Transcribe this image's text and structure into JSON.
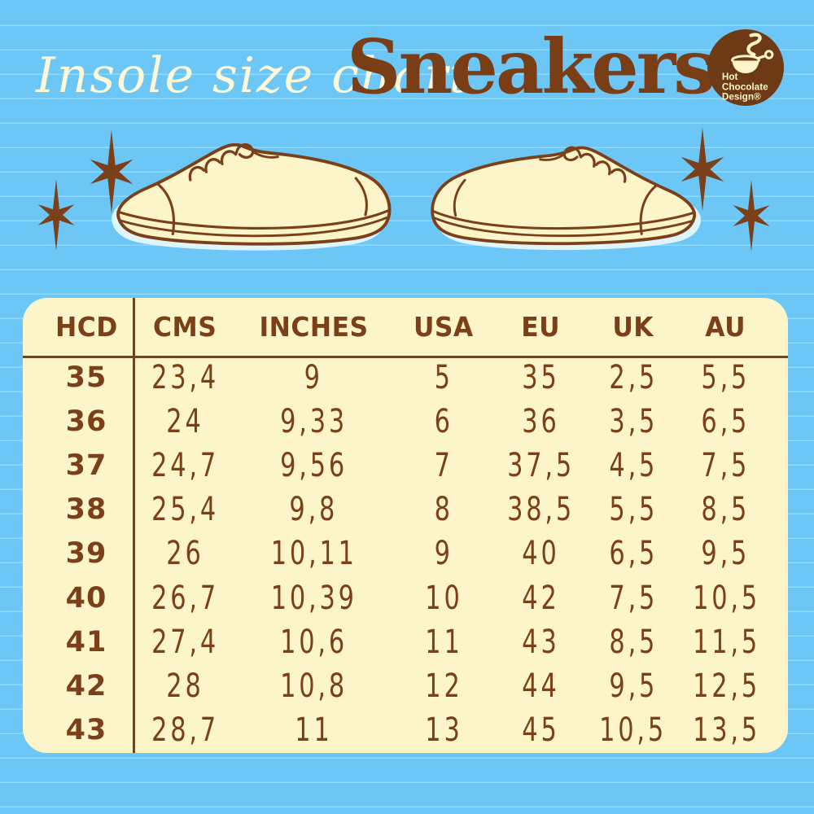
{
  "header": {
    "script_title": "Insole size chart",
    "product_title": "Sneakers"
  },
  "logo": {
    "line1": "Hot",
    "line2": "Chocolate",
    "line3": "Design®"
  },
  "chart_data": {
    "type": "table",
    "title": "Insole size chart — Sneakers",
    "columns": [
      "HCD",
      "CMS",
      "INCHES",
      "USA",
      "EU",
      "UK",
      "AU"
    ],
    "rows": [
      [
        "35",
        "23,4",
        "9",
        "5",
        "35",
        "2,5",
        "5,5"
      ],
      [
        "36",
        "24",
        "9,33",
        "6",
        "36",
        "3,5",
        "6,5"
      ],
      [
        "37",
        "24,7",
        "9,56",
        "7",
        "37,5",
        "4,5",
        "7,5"
      ],
      [
        "38",
        "25,4",
        "9,8",
        "8",
        "38,5",
        "5,5",
        "8,5"
      ],
      [
        "39",
        "26",
        "10,11",
        "9",
        "40",
        "6,5",
        "9,5"
      ],
      [
        "40",
        "26,7",
        "10,39",
        "10",
        "42",
        "7,5",
        "10,5"
      ],
      [
        "41",
        "27,4",
        "10,6",
        "11",
        "43",
        "8,5",
        "11,5"
      ],
      [
        "42",
        "28",
        "10,8",
        "12",
        "44",
        "9,5",
        "12,5"
      ],
      [
        "43",
        "28,7",
        "11",
        "13",
        "45",
        "10,5",
        "13,5"
      ]
    ]
  },
  "colors": {
    "background": "#6CC7F7",
    "ruled_line": "#8AD3F9",
    "panel_cream": "#FBF5C9",
    "title_cream": "#FDF8D8",
    "brown": "#7B4019",
    "logo_brown": "#6D3A15"
  }
}
